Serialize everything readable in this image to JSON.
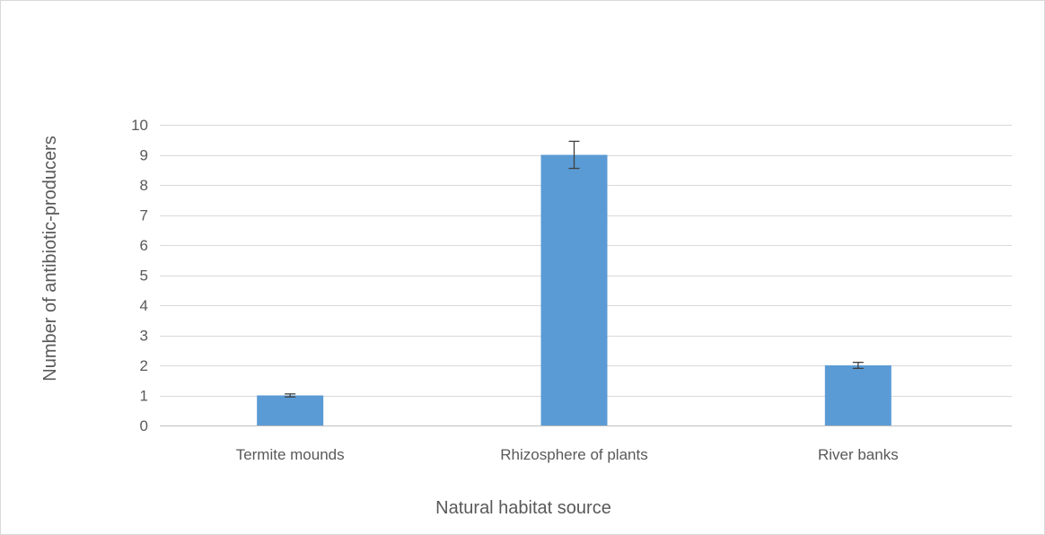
{
  "chart_data": {
    "type": "bar",
    "categories": [
      "Termite mounds",
      "Rhizosphere of plants",
      "River banks"
    ],
    "values": [
      1,
      9,
      2
    ],
    "error_bars": [
      0.05,
      0.45,
      0.1
    ],
    "xlabel": "Natural habitat source",
    "ylabel": "Number of antibiotic-producers",
    "ylim": [
      0,
      10
    ],
    "yticks": [
      0,
      1,
      2,
      3,
      4,
      5,
      6,
      7,
      8,
      9,
      10
    ],
    "grid": "horizontal",
    "bar_color": "#5b9bd5"
  }
}
